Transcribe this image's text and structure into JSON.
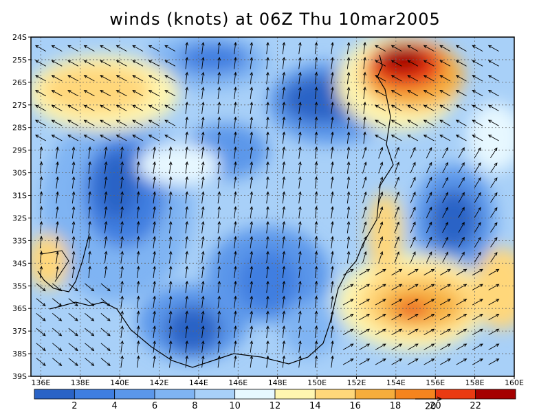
{
  "title": "winds (knots) at 06Z Thu 10mar2005",
  "lat_labels": [
    "24S",
    "25S",
    "26S",
    "27S",
    "28S",
    "29S",
    "30S",
    "31S",
    "32S",
    "33S",
    "34S",
    "35S",
    "36S",
    "37S",
    "38S",
    "39S"
  ],
  "lon_labels": [
    "136E",
    "138E",
    "140E",
    "142E",
    "144E",
    "146E",
    "148E",
    "150E",
    "152E",
    "154E",
    "156E",
    "158E",
    "160E"
  ],
  "colorbar": {
    "colors": [
      "#2a63c6",
      "#3f7ee0",
      "#5b97ea",
      "#7fb4f3",
      "#a8d0f8",
      "#e7f8ff",
      "#fff6b0",
      "#ffd77a",
      "#f6ad3c",
      "#f5841e",
      "#ea3a12",
      "#a50000"
    ],
    "labels": [
      "2",
      "4",
      "6",
      "8",
      "10",
      "12",
      "14",
      "16",
      "18",
      "20",
      "22"
    ]
  },
  "reference_vector": {
    "speed": "20"
  },
  "map_extent": {
    "lon": [
      135.5,
      160
    ],
    "lat": [
      -39,
      -24
    ]
  }
}
